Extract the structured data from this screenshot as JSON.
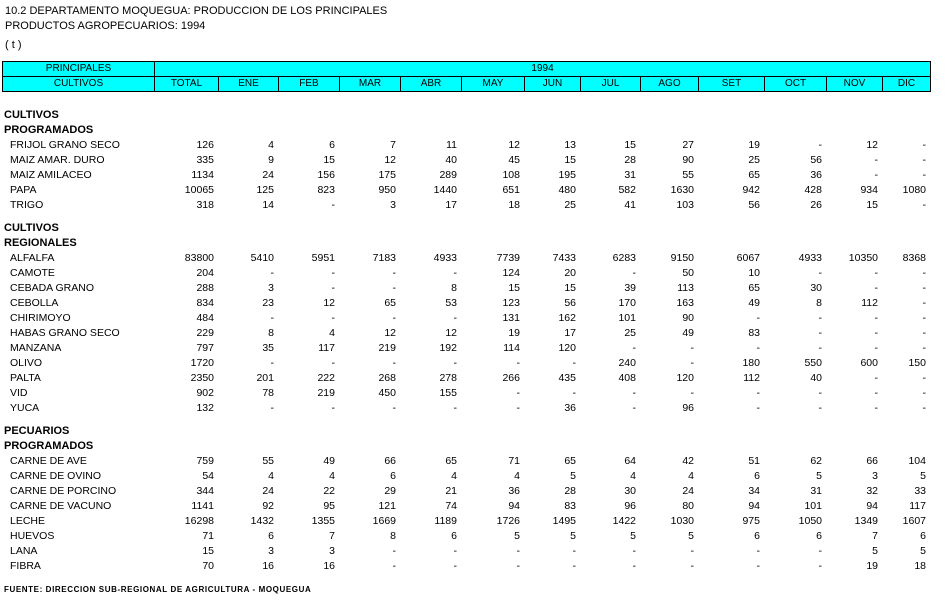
{
  "title": {
    "line1": "10.2  DEPARTAMENTO MOQUEGUA: PRODUCCION DE LOS PRINCIPALES",
    "line2": "PRODUCTOS AGROPECUARIOS: 1994",
    "unit": "( t )"
  },
  "header": {
    "principales": "PRINCIPALES",
    "cultivos": "CULTIVOS",
    "year": "1994",
    "columns": [
      "TOTAL",
      "ENE",
      "FEB",
      "MAR",
      "ABR",
      "MAY",
      "JUN",
      "JUL",
      "AGO",
      "SET",
      "OCT",
      "NOV",
      "DIC"
    ]
  },
  "sections": [
    {
      "title": [
        "CULTIVOS",
        "PROGRAMADOS"
      ],
      "rows": [
        {
          "name": "FRIJOL GRANO SECO",
          "values": [
            "126",
            "4",
            "6",
            "7",
            "11",
            "12",
            "13",
            "15",
            "27",
            "19",
            "-",
            "12",
            "-"
          ]
        },
        {
          "name": "MAIZ AMAR. DURO",
          "values": [
            "335",
            "9",
            "15",
            "12",
            "40",
            "45",
            "15",
            "28",
            "90",
            "25",
            "56",
            "-",
            "-"
          ]
        },
        {
          "name": "MAIZ AMILACEO",
          "values": [
            "1134",
            "24",
            "156",
            "175",
            "289",
            "108",
            "195",
            "31",
            "55",
            "65",
            "36",
            "-",
            "-"
          ]
        },
        {
          "name": "PAPA",
          "values": [
            "10065",
            "125",
            "823",
            "950",
            "1440",
            "651",
            "480",
            "582",
            "1630",
            "942",
            "428",
            "934",
            "1080"
          ]
        },
        {
          "name": "TRIGO",
          "values": [
            "318",
            "14",
            "-",
            "3",
            "17",
            "18",
            "25",
            "41",
            "103",
            "56",
            "26",
            "15",
            "-"
          ]
        }
      ]
    },
    {
      "title": [
        "CULTIVOS",
        "REGIONALES"
      ],
      "rows": [
        {
          "name": "ALFALFA",
          "values": [
            "83800",
            "5410",
            "5951",
            "7183",
            "4933",
            "7739",
            "7433",
            "6283",
            "9150",
            "6067",
            "4933",
            "10350",
            "8368"
          ]
        },
        {
          "name": "CAMOTE",
          "values": [
            "204",
            "-",
            "-",
            "-",
            "-",
            "124",
            "20",
            "-",
            "50",
            "10",
            "-",
            "-",
            "-"
          ]
        },
        {
          "name": "CEBADA GRANO",
          "values": [
            "288",
            "3",
            "-",
            "-",
            "8",
            "15",
            "15",
            "39",
            "113",
            "65",
            "30",
            "-",
            "-"
          ]
        },
        {
          "name": "CEBOLLA",
          "values": [
            "834",
            "23",
            "12",
            "65",
            "53",
            "123",
            "56",
            "170",
            "163",
            "49",
            "8",
            "112",
            "-"
          ]
        },
        {
          "name": "CHIRIMOYO",
          "values": [
            "484",
            "-",
            "-",
            "-",
            "-",
            "131",
            "162",
            "101",
            "90",
            "-",
            "-",
            "-",
            "-"
          ]
        },
        {
          "name": "HABAS GRANO SECO",
          "values": [
            "229",
            "8",
            "4",
            "12",
            "12",
            "19",
            "17",
            "25",
            "49",
            "83",
            "-",
            "-",
            "-"
          ]
        },
        {
          "name": "MANZANA",
          "values": [
            "797",
            "35",
            "117",
            "219",
            "192",
            "114",
            "120",
            "-",
            "-",
            "-",
            "-",
            "-",
            "-"
          ]
        },
        {
          "name": "OLIVO",
          "values": [
            "1720",
            "-",
            "-",
            "-",
            "-",
            "-",
            "-",
            "240",
            "-",
            "180",
            "550",
            "600",
            "150"
          ]
        },
        {
          "name": "PALTA",
          "values": [
            "2350",
            "201",
            "222",
            "268",
            "278",
            "266",
            "435",
            "408",
            "120",
            "112",
            "40",
            "-",
            "-"
          ]
        },
        {
          "name": "VID",
          "values": [
            "902",
            "78",
            "219",
            "450",
            "155",
            "-",
            "-",
            "-",
            "-",
            "-",
            "-",
            "-",
            "-"
          ]
        },
        {
          "name": "YUCA",
          "values": [
            "132",
            "-",
            "-",
            "-",
            "-",
            "-",
            "36",
            "-",
            "96",
            "-",
            "-",
            "-",
            "-"
          ]
        }
      ]
    },
    {
      "title": [
        "PECUARIOS",
        "PROGRAMADOS"
      ],
      "rows": [
        {
          "name": "CARNE DE AVE",
          "values": [
            "759",
            "55",
            "49",
            "66",
            "65",
            "71",
            "65",
            "64",
            "42",
            "51",
            "62",
            "66",
            "104"
          ]
        },
        {
          "name": "CARNE DE OVINO",
          "values": [
            "54",
            "4",
            "4",
            "6",
            "4",
            "4",
            "5",
            "4",
            "4",
            "6",
            "5",
            "3",
            "5"
          ]
        },
        {
          "name": "CARNE DE PORCINO",
          "values": [
            "344",
            "24",
            "22",
            "29",
            "21",
            "36",
            "28",
            "30",
            "24",
            "34",
            "31",
            "32",
            "33"
          ]
        },
        {
          "name": "CARNE DE VACUNO",
          "values": [
            "1141",
            "92",
            "95",
            "121",
            "74",
            "94",
            "83",
            "96",
            "80",
            "94",
            "101",
            "94",
            "117"
          ]
        },
        {
          "name": "LECHE",
          "values": [
            "16298",
            "1432",
            "1355",
            "1669",
            "1189",
            "1726",
            "1495",
            "1422",
            "1030",
            "975",
            "1050",
            "1349",
            "1607"
          ]
        },
        {
          "name": "HUEVOS",
          "values": [
            "71",
            "6",
            "7",
            "8",
            "6",
            "5",
            "5",
            "5",
            "5",
            "6",
            "6",
            "7",
            "6"
          ]
        },
        {
          "name": "LANA",
          "values": [
            "15",
            "3",
            "3",
            "-",
            "-",
            "-",
            "-",
            "-",
            "-",
            "-",
            "-",
            "5",
            "5"
          ]
        },
        {
          "name": "FIBRA",
          "values": [
            "70",
            "16",
            "16",
            "-",
            "-",
            "-",
            "-",
            "-",
            "-",
            "-",
            "-",
            "19",
            "18"
          ]
        }
      ]
    }
  ],
  "source": "FUENTE: DIRECCION SUB-REGIONAL DE AGRICULTURA - MOQUEGUA"
}
